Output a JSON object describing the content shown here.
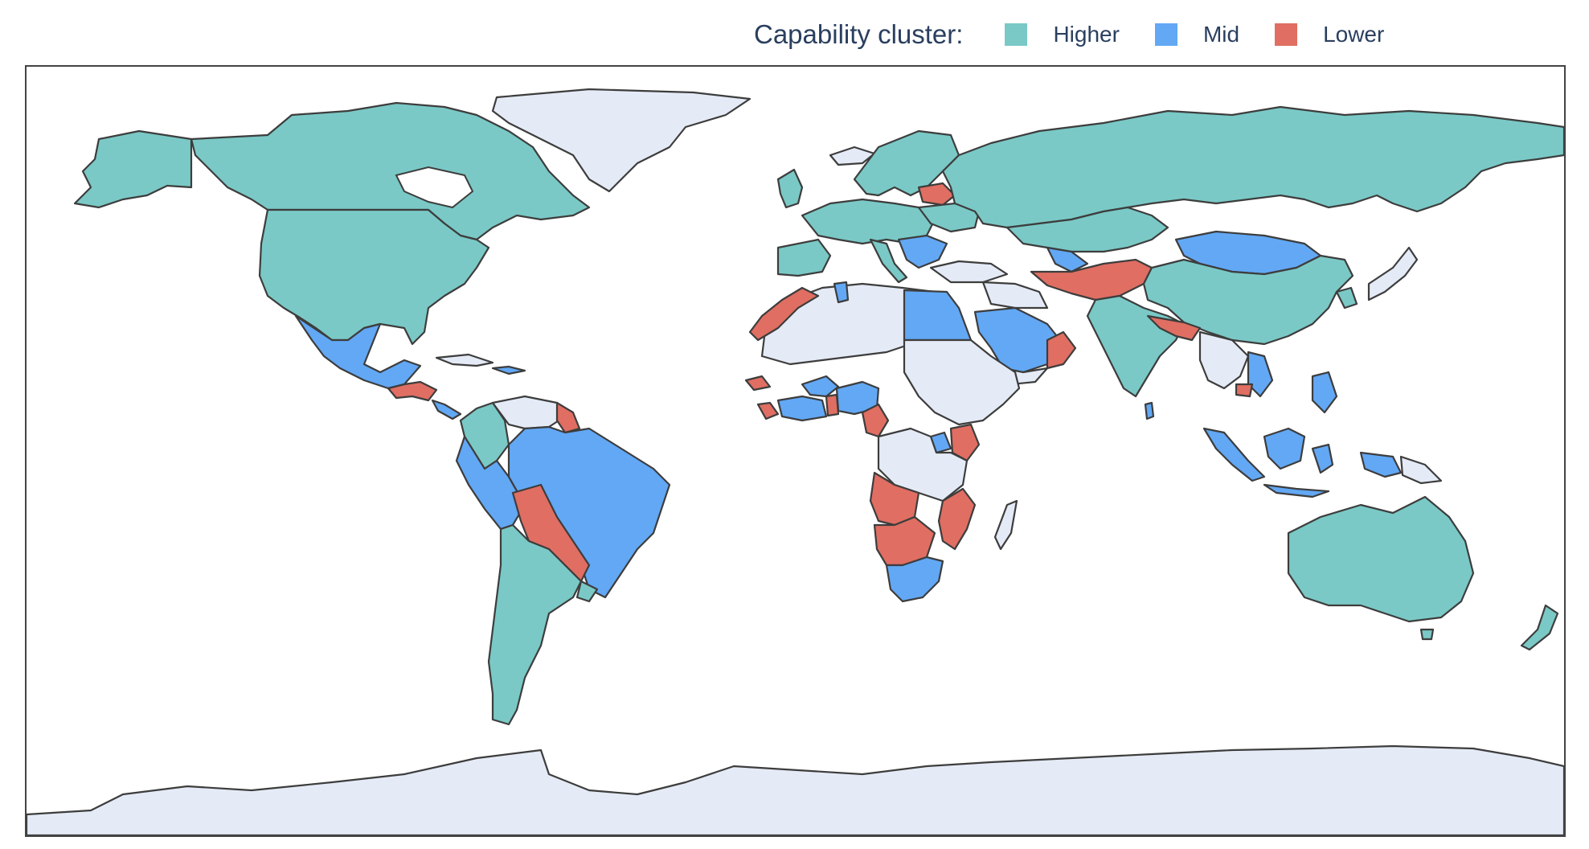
{
  "legend": {
    "title": "Capability cluster:",
    "items": [
      {
        "label": "Higher",
        "color": "#7ac9c6"
      },
      {
        "label": "Mid",
        "color": "#62a8f5"
      },
      {
        "label": "Lower",
        "color": "#e06e62"
      }
    ]
  },
  "colors": {
    "higher": "#7ac9c6",
    "mid": "#62a8f5",
    "lower": "#e06e62",
    "no_data": "#e5ebf6",
    "border": "#3d3d3d"
  }
}
